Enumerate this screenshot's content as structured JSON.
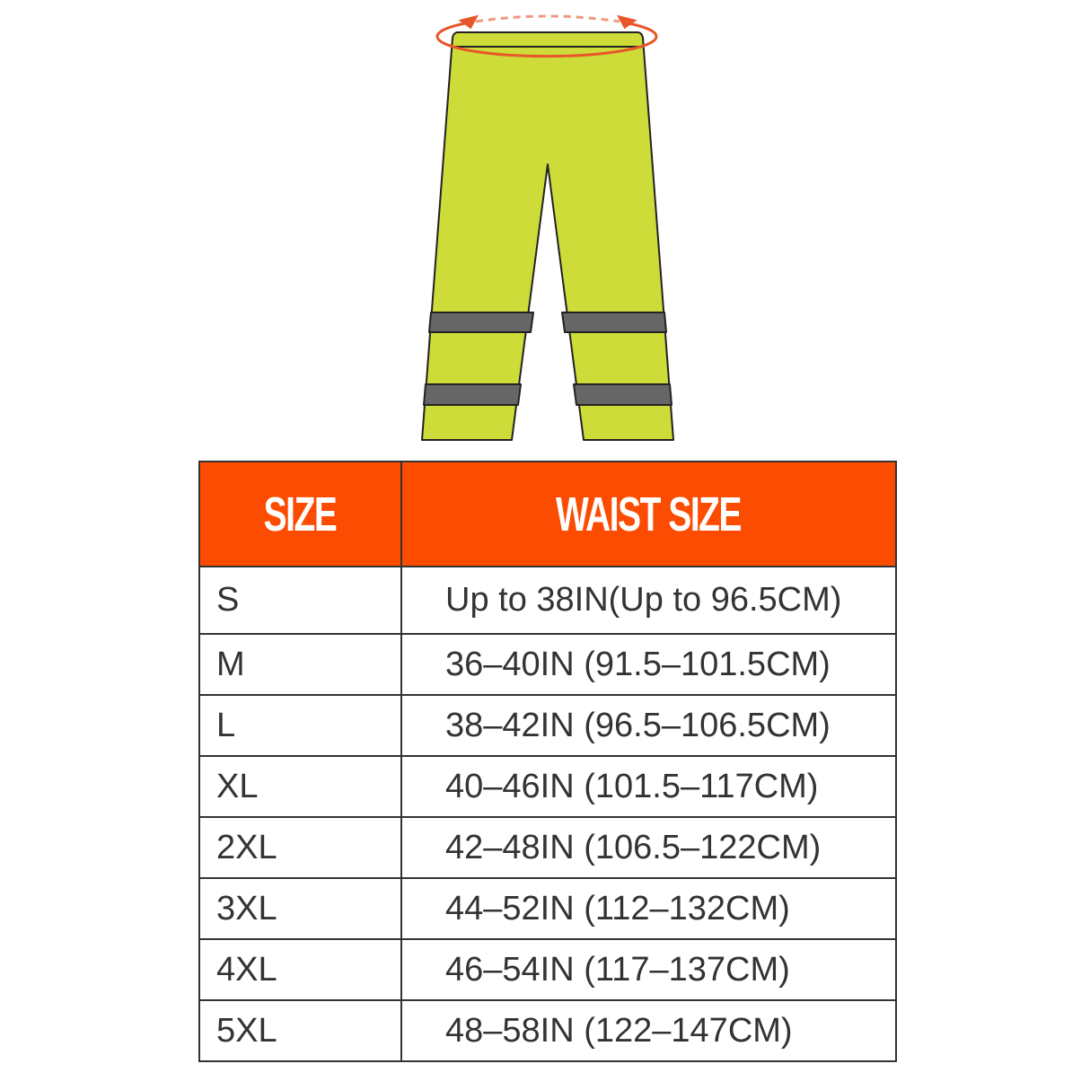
{
  "colors": {
    "header": "#fc4c02",
    "pants": "#cddc39",
    "band": "#666666",
    "arrow": "#e8572a"
  },
  "illustration": {
    "icon": "waist-measure-pants"
  },
  "table": {
    "headers": [
      "SIZE",
      "WAIST SIZE"
    ],
    "rows": [
      {
        "size": "S",
        "waist": "Up to 38IN(Up to 96.5CM)"
      },
      {
        "size": "M",
        "waist": "36–40IN (91.5–101.5CM)"
      },
      {
        "size": "L",
        "waist": "38–42IN (96.5–106.5CM)"
      },
      {
        "size": "XL",
        "waist": "40–46IN (101.5–117CM)"
      },
      {
        "size": "2XL",
        "waist": "42–48IN (106.5–122CM)"
      },
      {
        "size": "3XL",
        "waist": "44–52IN (112–132CM)"
      },
      {
        "size": "4XL",
        "waist": "46–54IN (117–137CM)"
      },
      {
        "size": "5XL",
        "waist": "48–58IN (122–147CM)"
      }
    ]
  }
}
